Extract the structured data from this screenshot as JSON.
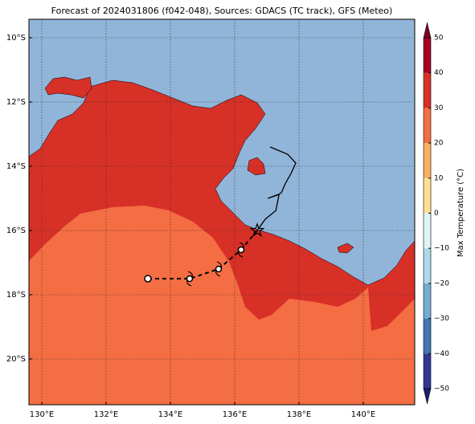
{
  "chart_data": {
    "type": "map",
    "title": "Forecast of 2024031806 (f042-048), Sources: GDACS (TC track), GFS (Meteo)",
    "xlim": [
      129.6,
      141.6
    ],
    "ylim": [
      -21.425,
      -9.425
    ],
    "xticks": [
      {
        "value": 130,
        "label": "130°E"
      },
      {
        "value": 132,
        "label": "132°E"
      },
      {
        "value": 134,
        "label": "134°E"
      },
      {
        "value": 136,
        "label": "136°E"
      },
      {
        "value": 138,
        "label": "138°E"
      },
      {
        "value": 140,
        "label": "140°E"
      }
    ],
    "yticks": [
      {
        "value": -10,
        "label": "10°S"
      },
      {
        "value": -12,
        "label": "12°S"
      },
      {
        "value": -14,
        "label": "14°S"
      },
      {
        "value": -16,
        "label": "16°S"
      },
      {
        "value": -18,
        "label": "18°S"
      },
      {
        "value": -20,
        "label": "20°S"
      }
    ],
    "grid": true,
    "track": {
      "x": [
        137.1,
        137.65,
        137.9,
        137.75,
        137.58,
        137.45,
        137.35,
        137.03,
        137.38,
        137.28,
        136.95,
        136.7
      ],
      "y": [
        -13.4,
        -13.63,
        -13.9,
        -14.23,
        -14.53,
        -14.83,
        -14.88,
        -15.0,
        -14.88,
        -15.38,
        -15.65,
        -16.0
      ],
      "color": "#000000"
    },
    "forecast": {
      "x": [
        133.3,
        134.6,
        135.5,
        136.2,
        136.7
      ],
      "y": [
        -17.5,
        -17.5,
        -17.2,
        -16.6,
        -16.0
      ],
      "color": "#000000"
    },
    "colorbar": {
      "label": "Max Temperature (°C)",
      "ylim": [
        -50,
        50
      ],
      "levels": [
        {
          "value": -50,
          "label": "−50"
        },
        {
          "value": -40,
          "label": "−40"
        },
        {
          "value": -30,
          "label": "−30"
        },
        {
          "value": -20,
          "label": "−20"
        },
        {
          "value": -10,
          "label": "−10"
        },
        0,
        10,
        20,
        30,
        40,
        50
      ],
      "colors": [
        "#313695",
        "#4575b4",
        "#74add1",
        "#abd9e9",
        "#e0f3f8",
        "#fee090",
        "#fdae61",
        "#f46d43",
        "#d73027",
        "#a50026"
      ]
    }
  }
}
